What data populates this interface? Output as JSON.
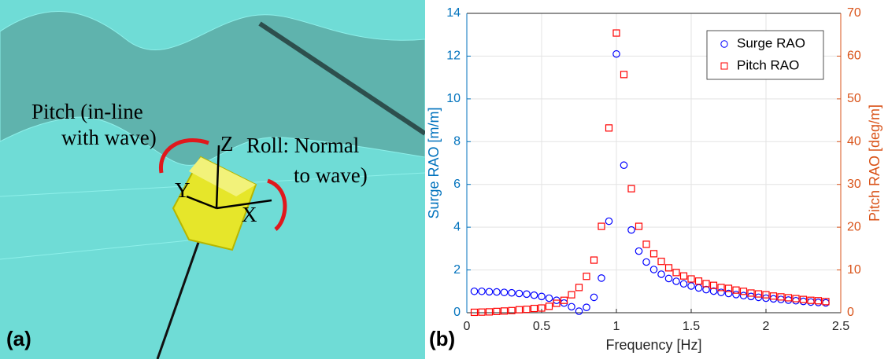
{
  "illustration": {
    "labels": [
      "Pitch (in-line",
      "with wave)",
      "Z",
      "Roll: Normal",
      "to wave)",
      "Y",
      "X"
    ],
    "panel_label": "(a)"
  },
  "chart_data": {
    "type": "scatter",
    "panel_label": "(b)",
    "xlabel": "Frequency [Hz]",
    "ylabel": "Surge RAO  [m/m]",
    "y2label": "Pitch RAO [deg/m]",
    "xlim": [
      0,
      2.5
    ],
    "xticks": [
      0,
      0.5,
      1,
      1.5,
      2,
      2.5
    ],
    "ylim": [
      0,
      14
    ],
    "yticks": [
      0,
      2,
      4,
      6,
      8,
      10,
      12,
      14
    ],
    "y2lim": [
      0,
      70
    ],
    "y2ticks": [
      0,
      10,
      20,
      30,
      40,
      50,
      60,
      70
    ],
    "grid": true,
    "legend": "upper right",
    "ycolor": "#0072bd",
    "y2color": "#d95319",
    "x": [
      0.05,
      0.1,
      0.15,
      0.2,
      0.25,
      0.3,
      0.35,
      0.4,
      0.45,
      0.5,
      0.55,
      0.6,
      0.65,
      0.7,
      0.75,
      0.8,
      0.85,
      0.9,
      0.95,
      1.0,
      1.05,
      1.1,
      1.15,
      1.2,
      1.25,
      1.3,
      1.35,
      1.4,
      1.45,
      1.5,
      1.55,
      1.6,
      1.65,
      1.7,
      1.75,
      1.8,
      1.85,
      1.9,
      1.95,
      2.0,
      2.05,
      2.1,
      2.15,
      2.2,
      2.25,
      2.3,
      2.35,
      2.4
    ],
    "series": [
      {
        "name": "Surge RAO",
        "color": "#0000ff",
        "marker": "circle",
        "axis": "y",
        "values": [
          1.0,
          1.0,
          0.98,
          0.97,
          0.95,
          0.93,
          0.9,
          0.87,
          0.82,
          0.76,
          0.68,
          0.58,
          0.45,
          0.28,
          0.07,
          0.25,
          0.72,
          1.62,
          4.28,
          12.1,
          6.9,
          3.87,
          2.88,
          2.37,
          2.02,
          1.8,
          1.6,
          1.47,
          1.35,
          1.25,
          1.16,
          1.08,
          1.01,
          0.95,
          0.9,
          0.85,
          0.8,
          0.76,
          0.72,
          0.68,
          0.65,
          0.62,
          0.59,
          0.56,
          0.53,
          0.5,
          0.48,
          0.46
        ]
      },
      {
        "name": "Pitch RAO",
        "color": "#ff0000",
        "marker": "square",
        "axis": "y2",
        "values": [
          0.1,
          0.15,
          0.2,
          0.3,
          0.4,
          0.5,
          0.7,
          0.8,
          1.0,
          1.1,
          1.5,
          2.2,
          2.9,
          4.2,
          5.9,
          8.5,
          12.3,
          20.2,
          43.2,
          65.4,
          55.7,
          29,
          20.2,
          16,
          13.8,
          12,
          10.5,
          9.4,
          8.6,
          7.9,
          7.4,
          6.8,
          6.4,
          5.9,
          5.7,
          5.3,
          5.0,
          4.6,
          4.4,
          4.2,
          3.9,
          3.7,
          3.5,
          3.3,
          3.1,
          2.9,
          2.8,
          2.6
        ]
      }
    ]
  }
}
